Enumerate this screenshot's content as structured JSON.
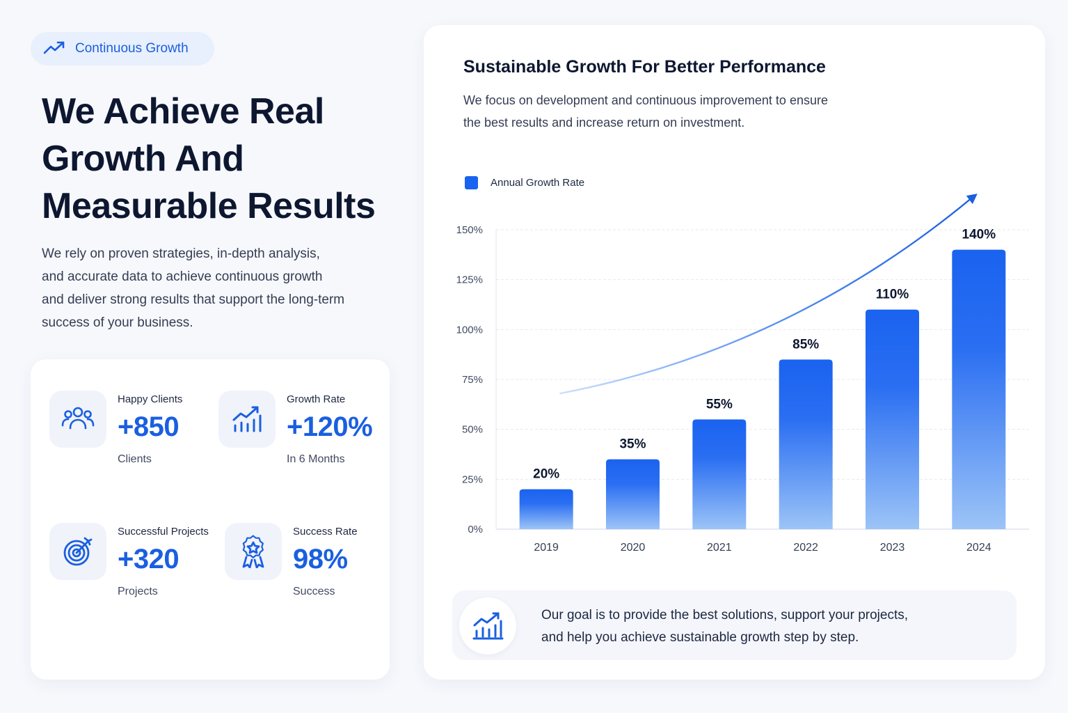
{
  "badge": {
    "label": "Continuous Growth",
    "icon": "trending-up-icon"
  },
  "headline": {
    "lines": [
      "We Achieve Real",
      "Growth And",
      "Measurable Results"
    ]
  },
  "lead": {
    "lines": [
      "We rely on proven strategies, in-depth analysis,",
      "and accurate data to achieve continuous growth",
      "and deliver strong results that support the long-term",
      "success of your business."
    ]
  },
  "stats": [
    {
      "icon": "users-icon",
      "label": "Happy Clients",
      "value": "+850",
      "sub": "Clients"
    },
    {
      "icon": "growth-chart-icon",
      "label": "Growth Rate",
      "value": "+120%",
      "sub": "In 6 Months"
    },
    {
      "icon": "target-icon",
      "label": "Successful Projects",
      "value": "+320",
      "sub": "Projects"
    },
    {
      "icon": "award-badge-icon",
      "label": "Success Rate",
      "value": "98%",
      "sub": "Success"
    }
  ],
  "chart_card": {
    "title": "Sustainable Growth For Better Performance",
    "desc_lines": [
      "We focus on development and continuous improvement to ensure",
      "the best results and increase return on investment."
    ]
  },
  "chart_data": {
    "type": "bar",
    "title": "",
    "xlabel": "",
    "ylabel": "",
    "categories": [
      "2019",
      "2020",
      "2021",
      "2022",
      "2023",
      "2024"
    ],
    "series": [
      {
        "name": "Annual Growth Rate",
        "values": [
          20,
          35,
          55,
          85,
          110,
          140
        ],
        "color": "#1a63f0"
      }
    ],
    "data_labels": [
      "20%",
      "35%",
      "55%",
      "85%",
      "110%",
      "140%"
    ],
    "ylim": [
      0,
      150
    ],
    "yticks": [
      0,
      25,
      50,
      75,
      100,
      125,
      150
    ],
    "ytick_labels": [
      "0%",
      "25%",
      "50%",
      "75%",
      "100%",
      "125%",
      "150%"
    ],
    "grid": true,
    "legend": "top-left",
    "trend_arrow": true
  },
  "goal": {
    "icon": "growth-chart-icon",
    "lines": [
      "Our goal is to provide the best solutions, support your projects,",
      "and help you achieve sustainable growth step by step."
    ]
  },
  "colors": {
    "accent": "#1a5fe0",
    "heading": "#0d1730",
    "bar_top": "#1a63f0",
    "bar_bottom": "#9cc4f7"
  }
}
